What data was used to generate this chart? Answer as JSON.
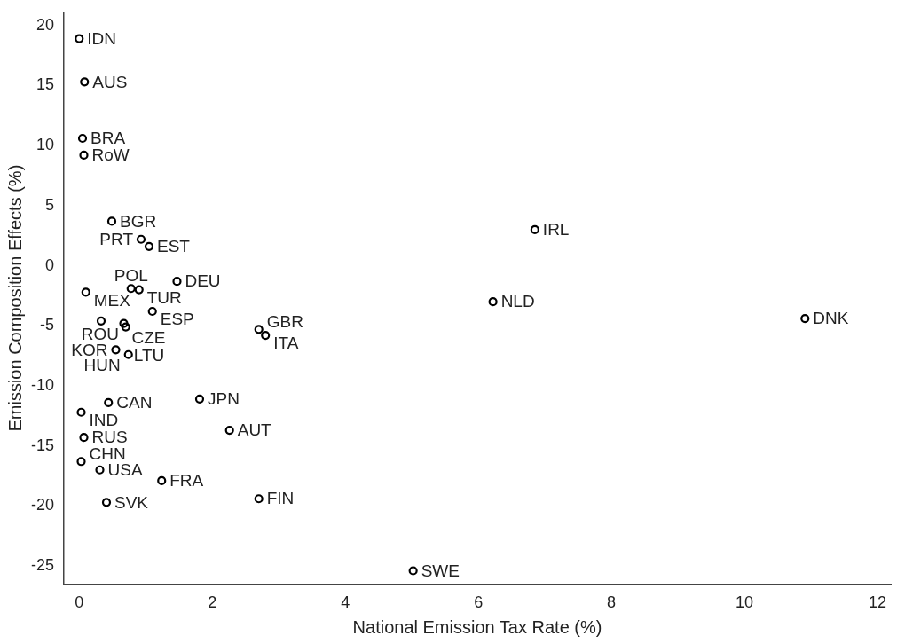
{
  "chart_data": {
    "type": "scatter",
    "xlabel": "National Emission Tax Rate (%)",
    "ylabel": "Emission Composition Effects (%)",
    "x": [
      0,
      0.08,
      0.05,
      0.07,
      0.49,
      0.93,
      1.05,
      1.47,
      0.1,
      0.78,
      0.9,
      1.1,
      0.33,
      0.67,
      0.7,
      0.55,
      0.74,
      2.7,
      2.8,
      6.85,
      6.22,
      10.91,
      0.44,
      0.03,
      0.07,
      0.03,
      0.31,
      1.81,
      2.26,
      1.24,
      2.7,
      0.41,
      5.02
    ],
    "values": [
      18.9,
      15.3,
      10.6,
      9.2,
      3.7,
      2.2,
      1.6,
      -1.3,
      -2.2,
      -1.9,
      -2.0,
      -3.8,
      -4.6,
      -4.8,
      -5.1,
      -7.0,
      -7.4,
      -5.3,
      -5.8,
      3.0,
      -3.0,
      -4.4,
      -11.4,
      -12.2,
      -14.3,
      -16.3,
      -17.0,
      -11.1,
      -13.7,
      -17.9,
      -19.4,
      -19.7,
      -25.4
    ],
    "color": "#000000",
    "marker": "circle",
    "grid": false,
    "legend": false,
    "xlim": [
      -0.23,
      12.2
    ],
    "xticks": [
      0,
      2,
      4,
      6,
      8,
      10,
      12
    ],
    "ylim": [
      -26.5,
      21.1
    ],
    "yticks": [
      -25,
      -20,
      -15,
      -10,
      -5,
      0,
      5,
      10,
      15,
      20
    ],
    "annotations": [
      {
        "text": "IDN",
        "x": 0,
        "y": 18.9
      },
      {
        "text": "AUS",
        "x": 0.08,
        "y": 15.3
      },
      {
        "text": "BRA",
        "x": 0.05,
        "y": 10.6
      },
      {
        "text": "RoW",
        "x": 0.07,
        "y": 9.2
      },
      {
        "text": "BGR",
        "x": 0.49,
        "y": 3.7
      },
      {
        "text": "PRT",
        "x": 0.93,
        "y": 2.2
      },
      {
        "text": "EST",
        "x": 1.05,
        "y": 1.6
      },
      {
        "text": "DEU",
        "x": 1.47,
        "y": -1.3
      },
      {
        "text": "MEX",
        "x": 0.1,
        "y": -2.2
      },
      {
        "text": "POL",
        "x": 0.78,
        "y": -1.9
      },
      {
        "text": "TUR",
        "x": 0.9,
        "y": -2.0
      },
      {
        "text": "ESP",
        "x": 1.1,
        "y": -3.8
      },
      {
        "text": "ROU",
        "x": 0.33,
        "y": -4.6
      },
      {
        "text": "CZE",
        "x": 0.67,
        "y": -4.8
      },
      {
        "text": "LTU",
        "x": 0.7,
        "y": -5.1
      },
      {
        "text": "KOR",
        "x": 0.55,
        "y": -7.0
      },
      {
        "text": "HUN",
        "x": 0.74,
        "y": -7.4
      },
      {
        "text": "GBR",
        "x": 2.7,
        "y": -5.3
      },
      {
        "text": "ITA",
        "x": 2.8,
        "y": -5.8
      },
      {
        "text": "IRL",
        "x": 6.85,
        "y": 3.0
      },
      {
        "text": "NLD",
        "x": 6.22,
        "y": -3.0
      },
      {
        "text": "DNK",
        "x": 10.91,
        "y": -4.4
      },
      {
        "text": "CAN",
        "x": 0.44,
        "y": -11.4
      },
      {
        "text": "IND",
        "x": 0.03,
        "y": -12.2
      },
      {
        "text": "RUS",
        "x": 0.07,
        "y": -14.3
      },
      {
        "text": "CHN",
        "x": 0.03,
        "y": -16.3
      },
      {
        "text": "USA",
        "x": 0.31,
        "y": -17.0
      },
      {
        "text": "JPN",
        "x": 1.81,
        "y": -11.1
      },
      {
        "text": "AUT",
        "x": 2.26,
        "y": -13.7
      },
      {
        "text": "FRA",
        "x": 1.24,
        "y": -17.9
      },
      {
        "text": "FIN",
        "x": 2.7,
        "y": -19.4
      },
      {
        "text": "SVK",
        "x": 0.41,
        "y": -19.7
      },
      {
        "text": "SWE",
        "x": 5.02,
        "y": -25.4
      }
    ]
  }
}
